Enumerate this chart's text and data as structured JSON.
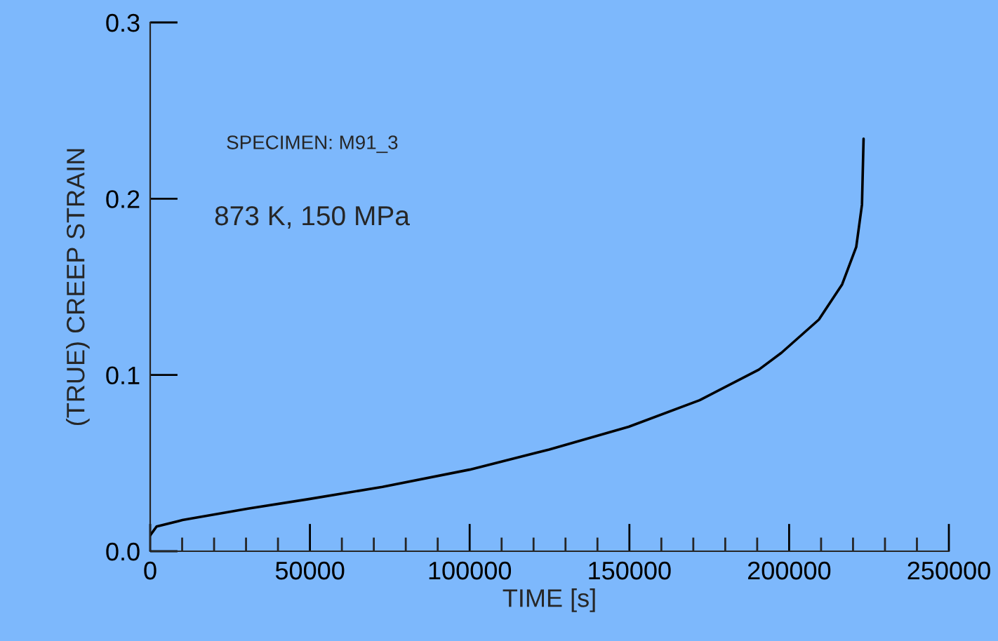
{
  "chart_data": {
    "type": "line",
    "xlabel": "TIME [s]",
    "ylabel": "(TRUE) CREEP STRAIN",
    "annotations": [
      "SPECIMEN: M91_3",
      "873 K, 150 MPa"
    ],
    "x": [
      0,
      2000,
      10100,
      30600,
      50000,
      72700,
      100000,
      124900,
      149800,
      172000,
      190500,
      197600,
      209300,
      216600,
      221000,
      222800,
      223300
    ],
    "series": [
      {
        "color": "#000000",
        "values": [
          0.009,
          0.014,
          0.0177,
          0.0242,
          0.0297,
          0.0365,
          0.0463,
          0.0577,
          0.0706,
          0.0857,
          0.103,
          0.1126,
          0.1314,
          0.1514,
          0.1726,
          0.1966,
          0.234
        ]
      }
    ],
    "xlim": [
      0,
      250000
    ],
    "xticks": [
      0,
      50000,
      100000,
      150000,
      200000,
      250000
    ],
    "ylim": [
      0,
      0.3
    ],
    "yticks": [
      {
        "value": 0,
        "label": "0.0"
      },
      {
        "value": 0.1,
        "label": "0.1"
      },
      {
        "value": 0.2,
        "label": "0.2"
      },
      {
        "value": 0.3,
        "label": "0.3"
      }
    ],
    "grid": false,
    "legend": false,
    "marker": "none",
    "line_style": "solid"
  }
}
